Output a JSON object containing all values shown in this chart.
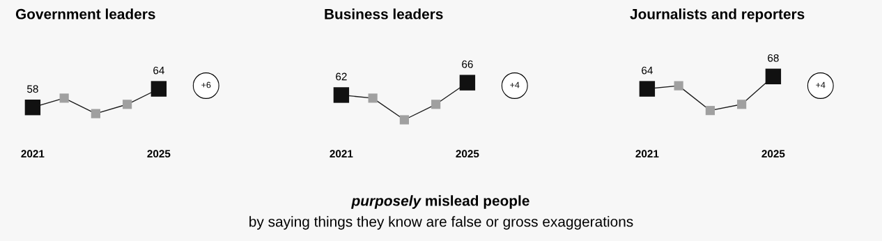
{
  "chart_data": [
    {
      "type": "line",
      "title": "Government leaders",
      "categories": [
        "2021",
        null,
        null,
        null,
        "2025"
      ],
      "marker": "square",
      "series": [
        {
          "color": "#1a1a1a",
          "colors": [
            "#111111",
            "#a0a0a0",
            "#a0a0a0",
            "#a0a0a0",
            "#111111"
          ],
          "values": [
            58,
            61,
            56,
            59,
            64
          ],
          "value_labels": [
            "58",
            null,
            null,
            null,
            "64"
          ]
        }
      ],
      "annotations": [
        "+6"
      ]
    },
    {
      "type": "line",
      "title": "Business leaders",
      "categories": [
        "2021",
        null,
        null,
        null,
        "2025"
      ],
      "marker": "square",
      "series": [
        {
          "color": "#1a1a1a",
          "colors": [
            "#111111",
            "#a0a0a0",
            "#a0a0a0",
            "#a0a0a0",
            "#111111"
          ],
          "values": [
            62,
            61,
            54,
            59,
            66
          ],
          "value_labels": [
            "62",
            null,
            null,
            null,
            "66"
          ]
        }
      ],
      "annotations": [
        "+4"
      ]
    },
    {
      "type": "line",
      "title": "Journalists and reporters",
      "categories": [
        "2021",
        null,
        null,
        null,
        "2025"
      ],
      "marker": "square",
      "series": [
        {
          "color": "#1a1a1a",
          "colors": [
            "#111111",
            "#a0a0a0",
            "#a0a0a0",
            "#a0a0a0",
            "#111111"
          ],
          "values": [
            64,
            65,
            57,
            59,
            68
          ],
          "value_labels": [
            "64",
            null,
            null,
            null,
            "68"
          ]
        }
      ],
      "annotations": [
        "+4"
      ]
    },
    {
      "type": "other",
      "annotations": [
        "purposely",
        "mislead people",
        "by saying things they know are false or gross exaggerations"
      ]
    }
  ]
}
